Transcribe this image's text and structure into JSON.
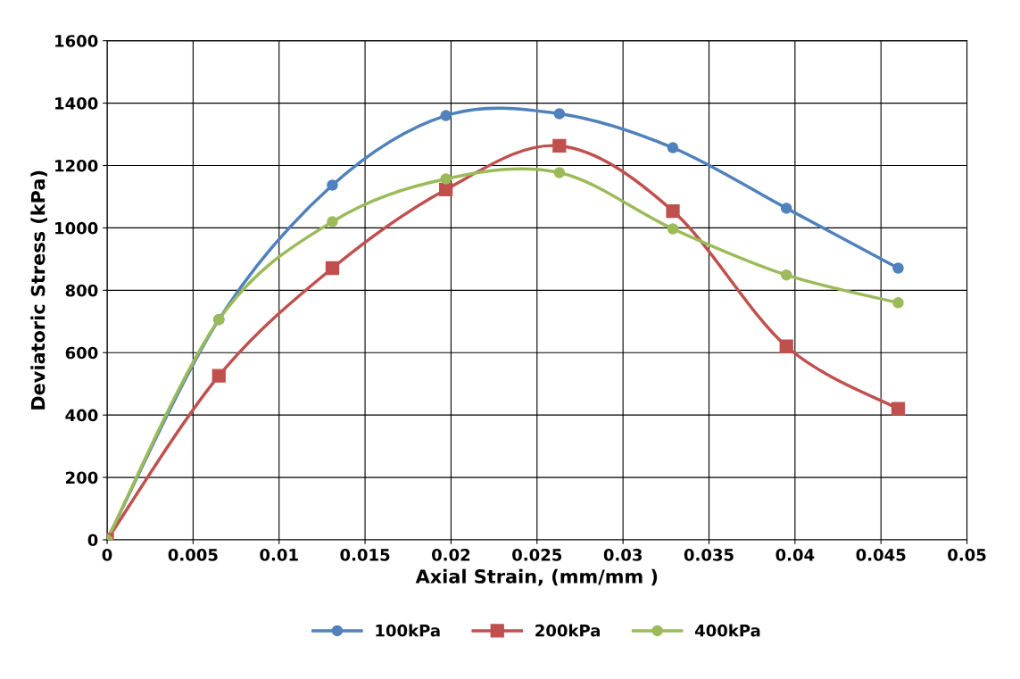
{
  "chart_data": {
    "type": "line",
    "xlabel": "Axial Strain, (mm/mm )",
    "ylabel": "Deviatoric Stress (kPa)",
    "x": [
      0,
      0.0065,
      0.0131,
      0.0197,
      0.0263,
      0.0329,
      0.0395,
      0.046
    ],
    "series": [
      {
        "name": "100kPa",
        "color": "#4f81bd",
        "marker": "circle",
        "values": [
          0,
          706,
          1137,
          1360,
          1366,
          1257,
          1063,
          871
        ]
      },
      {
        "name": "200kPa",
        "color": "#c0504d",
        "marker": "square",
        "values": [
          0,
          526,
          871,
          1123,
          1263,
          1054,
          620,
          420
        ]
      },
      {
        "name": "400kPa",
        "color": "#9bbb59",
        "marker": "circle",
        "values": [
          0,
          706,
          1020,
          1157,
          1177,
          997,
          849,
          760
        ]
      }
    ],
    "xlim": [
      0,
      0.05
    ],
    "xticks": [
      0,
      0.005,
      0.01,
      0.015,
      0.02,
      0.025,
      0.03,
      0.035,
      0.04,
      0.045,
      0.05
    ],
    "ylim": [
      0,
      1600
    ],
    "yticks": [
      0,
      200,
      400,
      600,
      800,
      1000,
      1200,
      1400,
      1600
    ],
    "grid": true,
    "legend": "bottom",
    "line_style": "solid"
  }
}
